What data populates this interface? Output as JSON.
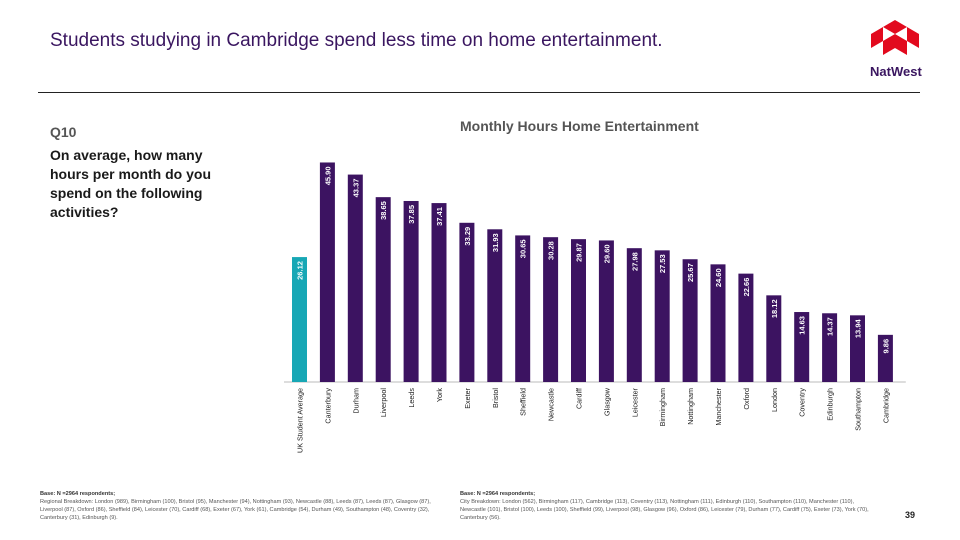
{
  "header": {
    "title": "Students studying in Cambridge spend less time on home entertainment.",
    "brand": "NatWest"
  },
  "question": {
    "number": "Q10",
    "text": "On average, how many hours per month do you spend on the following activities?"
  },
  "colors": {
    "bar": "#3c1361",
    "highlight": "#17a7b5",
    "label": "#ffffff",
    "brand_red": "#e20a1e"
  },
  "chart_data": {
    "type": "bar",
    "title": "Monthly Hours Home Entertainment",
    "categories": [
      "UK Student Average",
      "Canterbury",
      "Durham",
      "Liverpool",
      "Leeds",
      "York",
      "Exeter",
      "Bristol",
      "Sheffield",
      "Newcastle",
      "Cardiff",
      "Glasgow",
      "Leicester",
      "Birmingham",
      "Nottingham",
      "Manchester",
      "Oxford",
      "London",
      "Coventry",
      "Edinburgh",
      "Southampton",
      "Cambridge"
    ],
    "values": [
      26.12,
      45.9,
      43.37,
      38.65,
      37.85,
      37.41,
      33.29,
      31.93,
      30.65,
      30.28,
      29.87,
      29.6,
      27.98,
      27.53,
      25.67,
      24.6,
      22.66,
      18.12,
      14.63,
      14.37,
      13.94,
      9.86
    ],
    "highlight_index": 0,
    "value_labels": [
      "26.12",
      "45.90",
      "43.37",
      "38.65",
      "37.85",
      "37.41",
      "33.29",
      "31.93",
      "30.65",
      "30.28",
      "29.87",
      "29.60",
      "27.98",
      "27.53",
      "25.67",
      "24.60",
      "22.66",
      "18.12",
      "14.63",
      "14.37",
      "13.94",
      "9.86"
    ],
    "ylim": [
      0,
      46
    ],
    "xlabel": "",
    "ylabel": ""
  },
  "footnotes": {
    "left_title": "Base: N =2964 respondents;",
    "left_text": "Regional Breakdown: London (989), Birmingham (100), Bristol (95), Manchester (94), Nottingham (93), Newcastle (88), Leeds (87), Leeds (87), Glasgow (87), Liverpool (87), Oxford (86), Sheffield (84), Leicester (70), Cardiff (68), Exeter (67), York (61), Cambridge (54), Durham (49), Southampton (48), Coventry (32), Canterbury (31), Edinburgh (9).",
    "right_title": "Base: N =2964 respondents;",
    "right_text": "City Breakdown: London (562), Birmingham (117), Cambridge (113), Coventry (113), Nottingham (111), Edinburgh (110), Southampton (110), Manchester (110), Newcastle (101), Bristol (100), Leeds (100), Sheffield (99), Liverpool (98), Glasgow (96), Oxford (86), Leicester (79), Durham (77), Cardiff (75), Exeter (73), York (70), Canterbury (56)."
  },
  "page_number": "39"
}
